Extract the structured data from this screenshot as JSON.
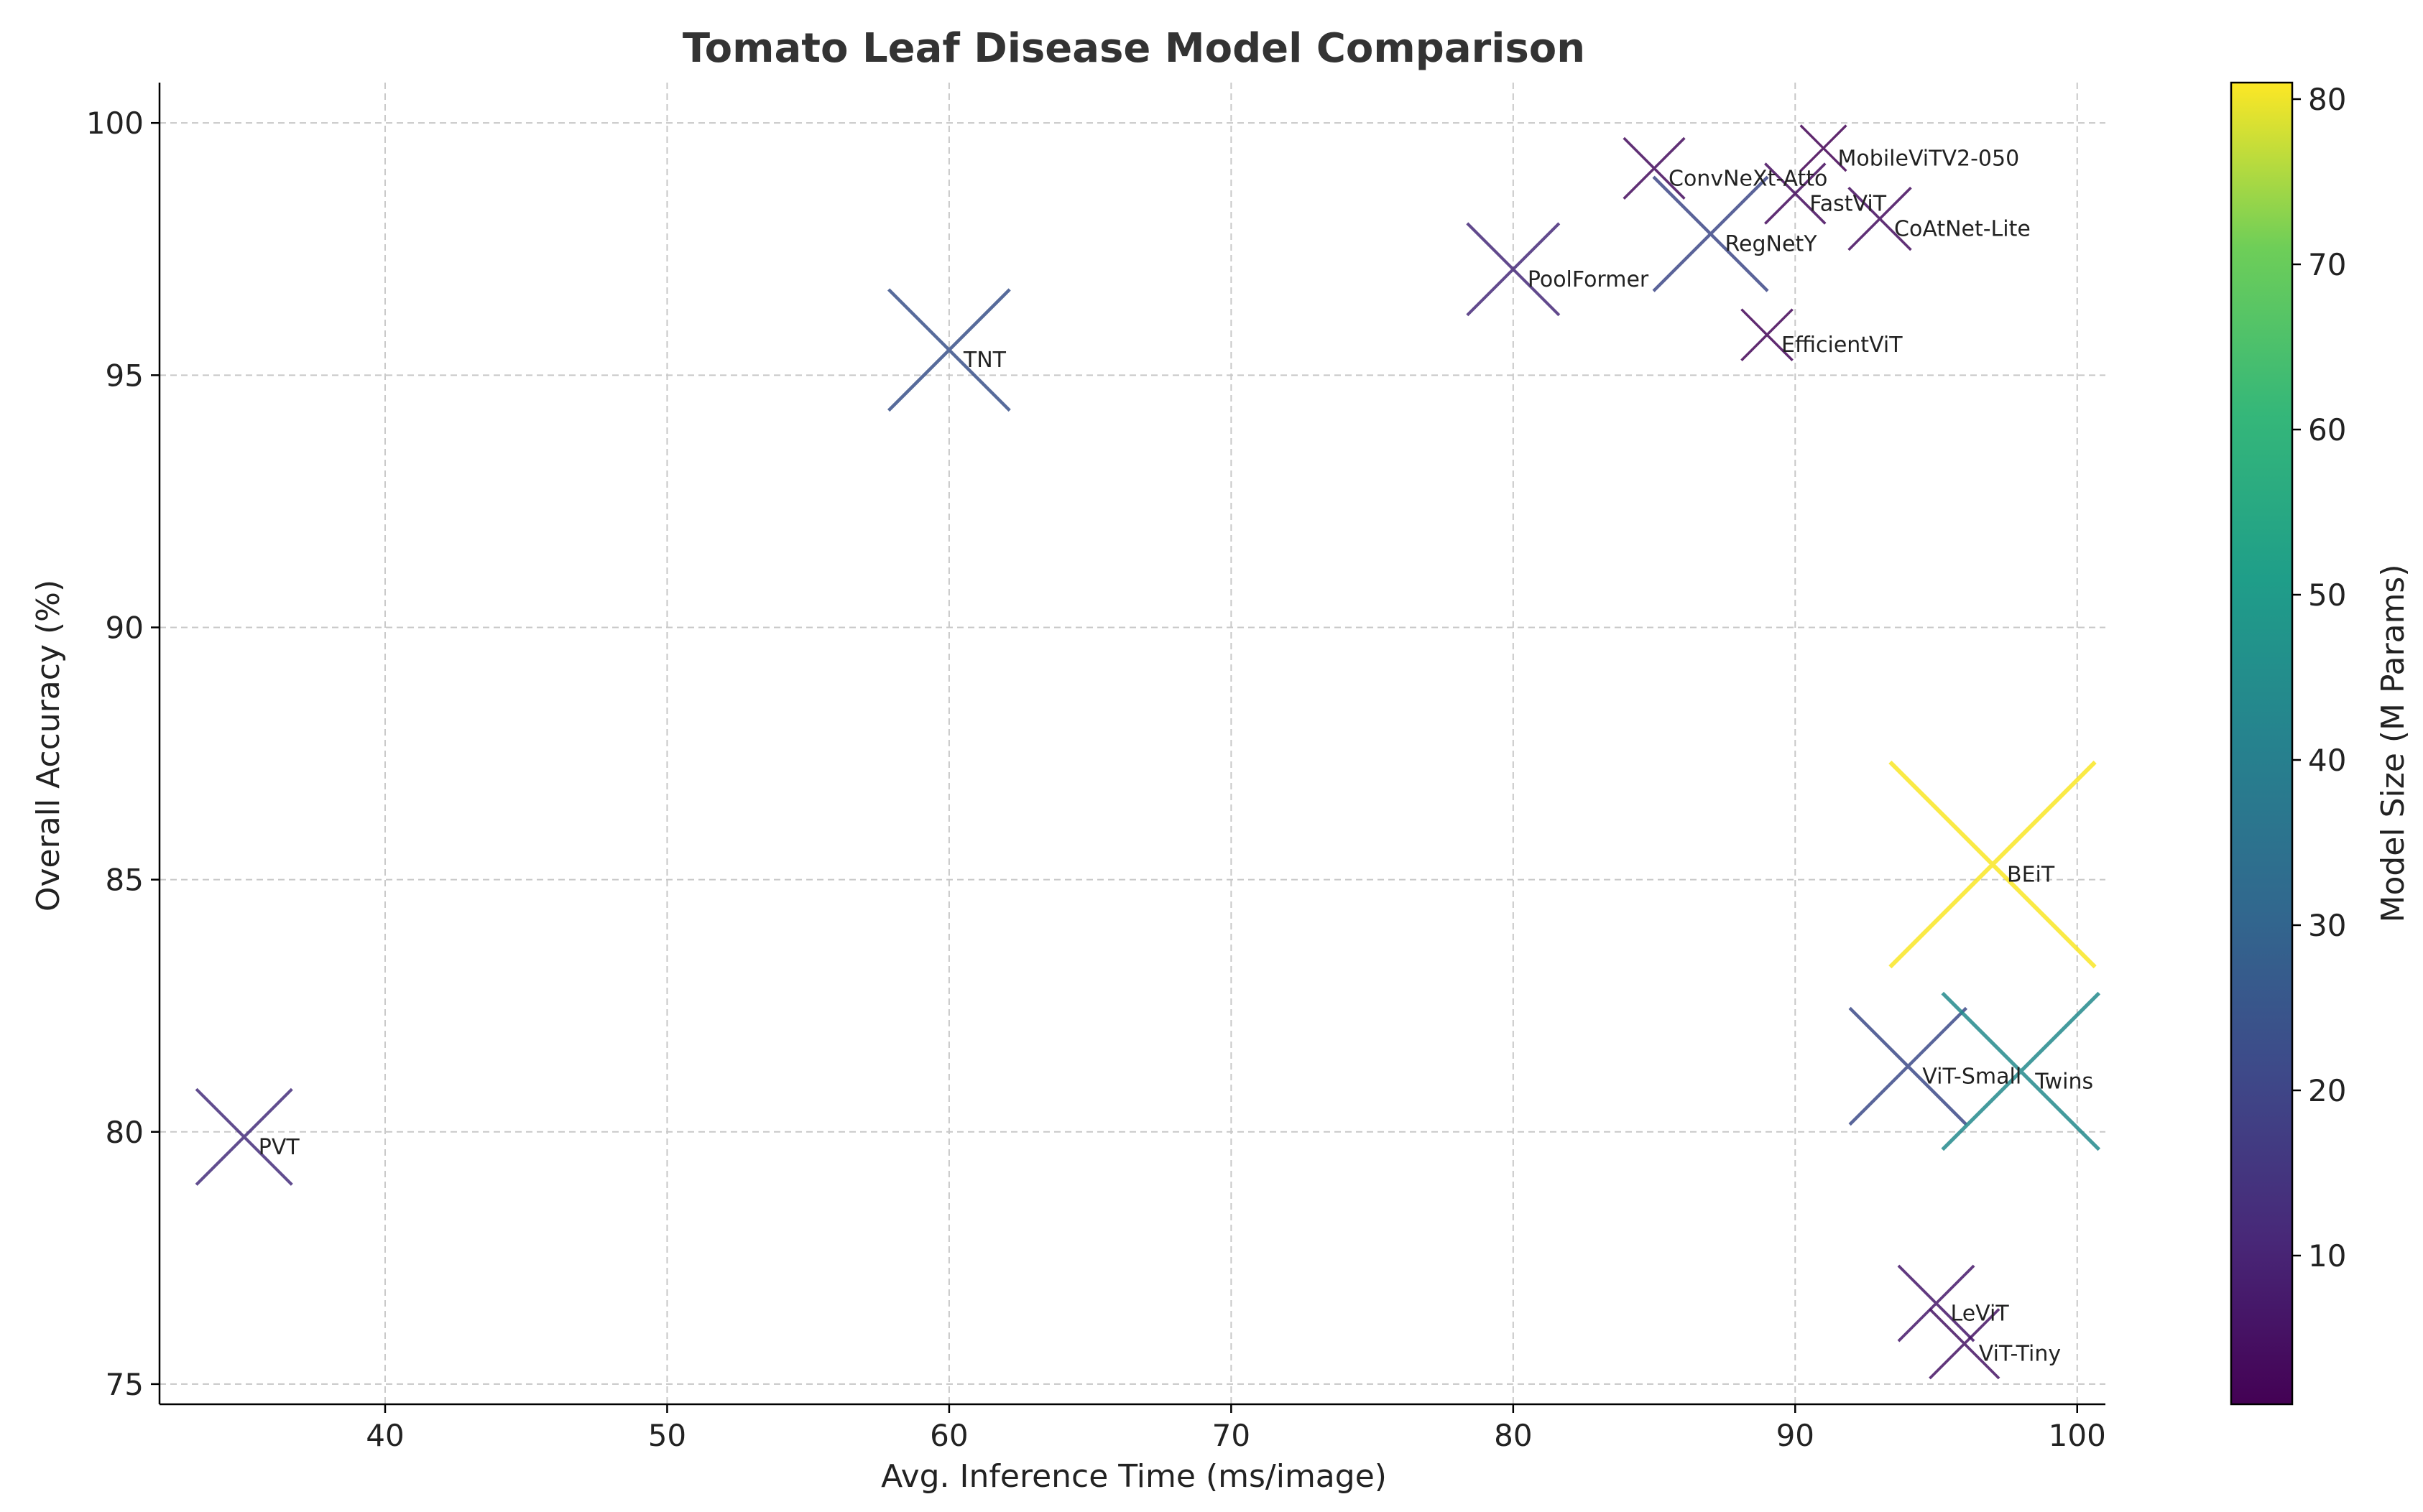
{
  "chart_data": {
    "type": "scatter",
    "title": "Tomato Leaf Disease Model Comparison",
    "xlabel": "Avg. Inference Time (ms/image)",
    "ylabel": "Overall Accuracy (%)",
    "xlim": [
      32,
      101
    ],
    "ylim": [
      74.6,
      100.8
    ],
    "xticks": [
      40,
      50,
      60,
      70,
      80,
      90,
      100
    ],
    "yticks": [
      75,
      80,
      85,
      90,
      95,
      100
    ],
    "grid": true,
    "marker": "x",
    "colorbar": {
      "label": "Model Size (M Params)",
      "min": 1,
      "max": 81,
      "ticks": [
        10,
        20,
        30,
        40,
        50,
        60,
        70,
        80
      ],
      "colormap": "viridis"
    },
    "points": [
      {
        "label": "MobileViTV2-050",
        "x": 91,
        "y": 99.5,
        "size": 1.4
      },
      {
        "label": "ConvNeXt-Atto",
        "x": 85,
        "y": 99.1,
        "size": 3.7
      },
      {
        "label": "FastViT",
        "x": 90,
        "y": 98.6,
        "size": 3.6
      },
      {
        "label": "CoAtNet-Lite",
        "x": 93,
        "y": 98.1,
        "size": 4.0
      },
      {
        "label": "RegNetY",
        "x": 87,
        "y": 97.8,
        "size": 20.6
      },
      {
        "label": "PoolFormer",
        "x": 80,
        "y": 97.1,
        "size": 11.9
      },
      {
        "label": "EfficientViT",
        "x": 89,
        "y": 95.8,
        "size": 2.1
      },
      {
        "label": "TNT",
        "x": 60,
        "y": 95.5,
        "size": 23.8
      },
      {
        "label": "BEiT",
        "x": 97,
        "y": 85.3,
        "size": 80.8
      },
      {
        "label": "ViT-Small",
        "x": 94,
        "y": 81.3,
        "size": 21.7
      },
      {
        "label": "Twins",
        "x": 98,
        "y": 81.2,
        "size": 43.8
      },
      {
        "label": "PVT",
        "x": 35,
        "y": 79.9,
        "size": 13.2
      },
      {
        "label": "LeViT",
        "x": 95,
        "y": 76.6,
        "size": 7.0
      },
      {
        "label": "ViT-Tiny",
        "x": 96,
        "y": 75.8,
        "size": 5.5
      }
    ]
  }
}
